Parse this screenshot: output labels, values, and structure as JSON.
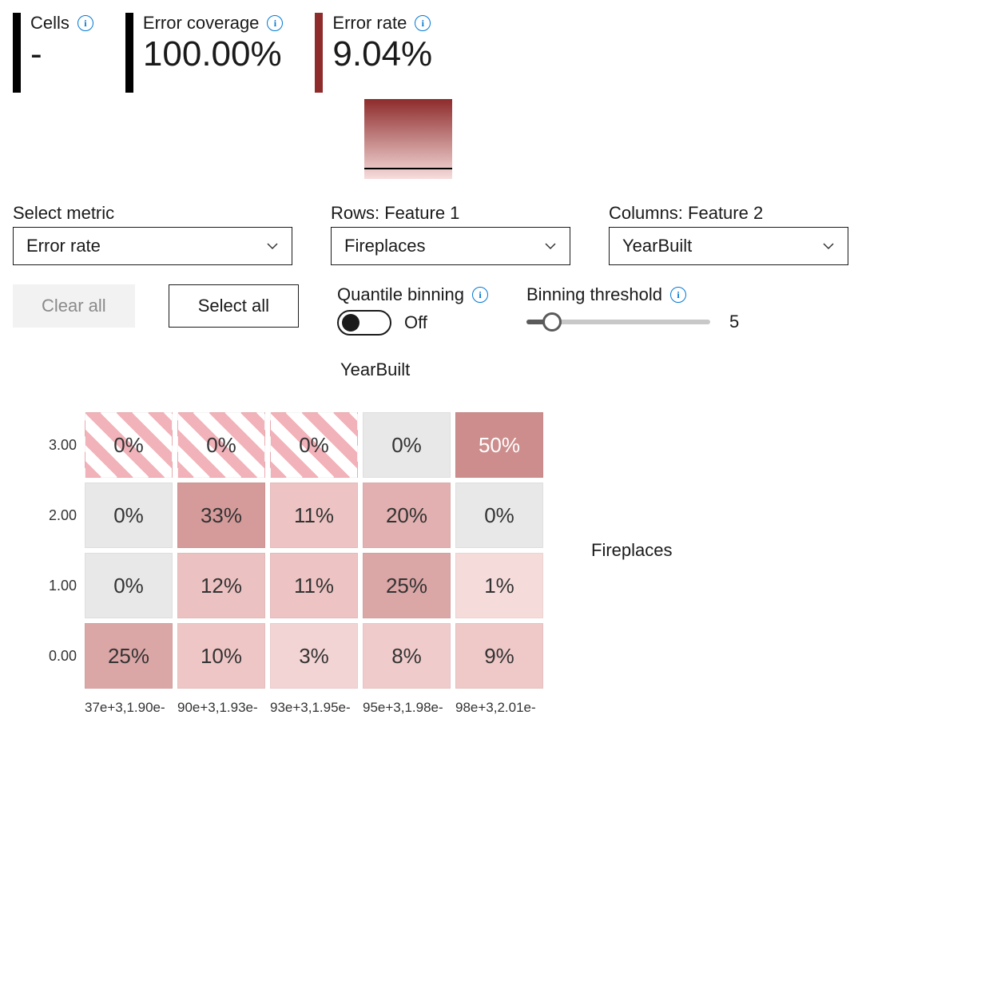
{
  "colors": {
    "accent_blue": "#0078d4",
    "metric_bar_black": "#000000",
    "metric_bar_red": "#8e2b2b",
    "legend_gradient_top": "#8e2b2b",
    "legend_gradient_bottom": "#f7dcdc",
    "hatch_stripe": "#f2b2b9",
    "hatch_gap": "#ffffff"
  },
  "metrics": {
    "cells": {
      "label": "Cells",
      "value": "-"
    },
    "error_coverage": {
      "label": "Error coverage",
      "value": "100.00%"
    },
    "error_rate": {
      "label": "Error rate",
      "value": "9.04%"
    }
  },
  "controls": {
    "metric": {
      "label": "Select metric",
      "value": "Error rate"
    },
    "rows": {
      "label": "Rows: Feature 1",
      "value": "Fireplaces"
    },
    "columns": {
      "label": "Columns: Feature 2",
      "value": "YearBuilt"
    },
    "clear_all": "Clear all",
    "select_all": "Select all",
    "quantile": {
      "label": "Quantile binning",
      "state": "Off"
    },
    "binning": {
      "label": "Binning threshold",
      "value": "5",
      "slider_percent": 14
    }
  },
  "heatmap": {
    "x_title": "YearBuilt",
    "y_title": "Fireplaces",
    "y_labels": [
      "3.00",
      "2.00",
      "1.00",
      "0.00"
    ],
    "x_labels": [
      "37e+3,1.90e-",
      "90e+3,1.93e-",
      "93e+3,1.95e-",
      "95e+3,1.98e-",
      "98e+3,2.01e-"
    ],
    "cell_size": {
      "w": 110,
      "h": 82
    },
    "rows": [
      [
        {
          "label": "0%",
          "bg": "#ffffff",
          "hatched": true,
          "text": "#333333"
        },
        {
          "label": "0%",
          "bg": "#ffffff",
          "hatched": true,
          "text": "#333333"
        },
        {
          "label": "0%",
          "bg": "#ffffff",
          "hatched": true,
          "text": "#333333"
        },
        {
          "label": "0%",
          "bg": "#e8e8e8",
          "hatched": false,
          "text": "#333333"
        },
        {
          "label": "50%",
          "bg": "#cd8d8d",
          "hatched": false,
          "text": "#ffffff"
        }
      ],
      [
        {
          "label": "0%",
          "bg": "#e8e8e8",
          "hatched": false,
          "text": "#333333"
        },
        {
          "label": "33%",
          "bg": "#d59a9a",
          "hatched": false,
          "text": "#333333"
        },
        {
          "label": "11%",
          "bg": "#edc3c3",
          "hatched": false,
          "text": "#333333"
        },
        {
          "label": "20%",
          "bg": "#e2b0b0",
          "hatched": false,
          "text": "#333333"
        },
        {
          "label": "0%",
          "bg": "#e8e8e8",
          "hatched": false,
          "text": "#333333"
        }
      ],
      [
        {
          "label": "0%",
          "bg": "#e8e8e8",
          "hatched": false,
          "text": "#333333"
        },
        {
          "label": "12%",
          "bg": "#ecc1c1",
          "hatched": false,
          "text": "#333333"
        },
        {
          "label": "11%",
          "bg": "#edc3c3",
          "hatched": false,
          "text": "#333333"
        },
        {
          "label": "25%",
          "bg": "#dba6a6",
          "hatched": false,
          "text": "#333333"
        },
        {
          "label": "1%",
          "bg": "#f6dbdb",
          "hatched": false,
          "text": "#333333"
        }
      ],
      [
        {
          "label": "25%",
          "bg": "#dba6a6",
          "hatched": false,
          "text": "#333333"
        },
        {
          "label": "10%",
          "bg": "#eec6c6",
          "hatched": false,
          "text": "#333333"
        },
        {
          "label": "3%",
          "bg": "#f3d4d4",
          "hatched": false,
          "text": "#333333"
        },
        {
          "label": "8%",
          "bg": "#f0cbcb",
          "hatched": false,
          "text": "#333333"
        },
        {
          "label": "9%",
          "bg": "#efc8c8",
          "hatched": false,
          "text": "#333333"
        }
      ]
    ]
  }
}
